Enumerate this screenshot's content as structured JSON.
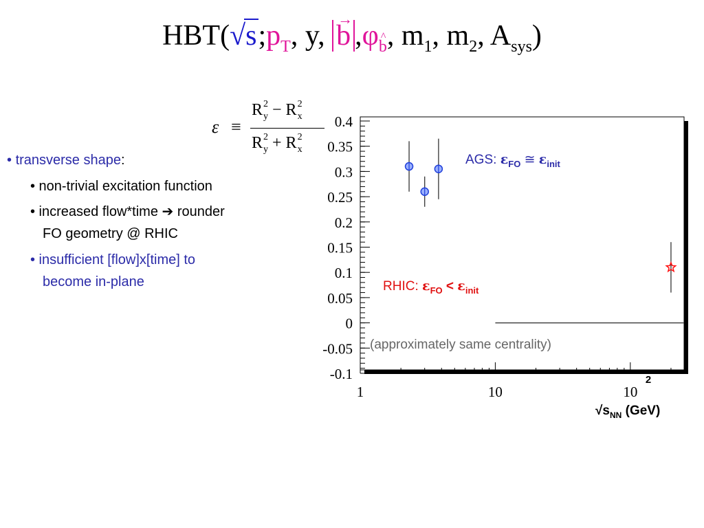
{
  "title": {
    "lead": "HBT(",
    "sqrt_arg": "s",
    "sep1": ";",
    "p": "p",
    "p_sub": "T",
    "middle": ", y,",
    "b": "b",
    "comma": ",",
    "phi": "φ",
    "phi_sub": "b",
    "m1": ", m",
    "m1_sub": "1",
    "m2": ", m",
    "m2_sub": "2",
    "a": ", A",
    "a_sub": "sys",
    "close": ")"
  },
  "formula": {
    "lhs": "ε",
    "equiv": "≡",
    "numerator": [
      "R",
      "y",
      "2",
      " − R",
      "x",
      "2"
    ],
    "denominator": [
      "R",
      "y",
      "2",
      " + R",
      "x",
      "2"
    ]
  },
  "bullets": {
    "b1": "• ",
    "b1_label": "transverse shape",
    "b1_colon": ":",
    "b2": "• non-trivial excitation function",
    "b3_line1": "• increased flow*time ➔ rounder",
    "b3_line2": "FO geometry @ RHIC",
    "b4_line1": "• insufficient [flow]x[time] to",
    "b4_line2": "become in-plane"
  },
  "chart_data": {
    "type": "scatter",
    "x_scale": "log",
    "xlim": [
      1,
      250
    ],
    "ylim": [
      -0.1,
      0.4
    ],
    "xlabel_main": "√s",
    "xlabel_sub": "NN",
    "xlabel_unit": " (GeV)",
    "x_ticks": [
      {
        "value": 1,
        "label": "1"
      },
      {
        "value": 10,
        "label": "10"
      },
      {
        "value": 100,
        "label": "10",
        "sup": "2"
      }
    ],
    "y_ticks": [
      {
        "value": 0.4,
        "label": "0.4"
      },
      {
        "value": 0.35,
        "label": "0.35"
      },
      {
        "value": 0.3,
        "label": "0.3"
      },
      {
        "value": 0.25,
        "label": "0.25"
      },
      {
        "value": 0.2,
        "label": "0.2"
      },
      {
        "value": 0.15,
        "label": "0.15"
      },
      {
        "value": 0.1,
        "label": "0.1"
      },
      {
        "value": 0.05,
        "label": "0.05"
      },
      {
        "value": 0,
        "label": "0"
      },
      {
        "value": -0.05,
        "label": "-0.05"
      },
      {
        "value": -0.1,
        "label": "-0.1"
      }
    ],
    "series": [
      {
        "marker": "circle",
        "color": "#1f3fd9",
        "points": [
          {
            "x": 2.3,
            "y": 0.31,
            "err": 0.05
          },
          {
            "x": 3.0,
            "y": 0.26,
            "err": 0.03
          },
          {
            "x": 3.8,
            "y": 0.305,
            "err": 0.06
          }
        ]
      },
      {
        "marker": "star",
        "color": "#ff1111",
        "points": [
          {
            "x": 200,
            "y": 0.11,
            "err": 0.05
          }
        ]
      }
    ],
    "reference_line": {
      "y": 0,
      "x_from": 10,
      "x_to": 250
    },
    "annotations": {
      "ags_prefix": "AGS: ",
      "ags_eps1": "ε",
      "ags_sub1": "FO",
      "ags_rel": " ≅ ",
      "ags_eps2": "ε",
      "ags_sub2": "init",
      "rhic_prefix": "RHIC: ",
      "rhic_eps1": "ε",
      "rhic_sub1": "FO",
      "rhic_rel": " < ",
      "rhic_eps2": "ε",
      "rhic_sub2": "init",
      "centrality": "(approximately same centrality)"
    }
  }
}
